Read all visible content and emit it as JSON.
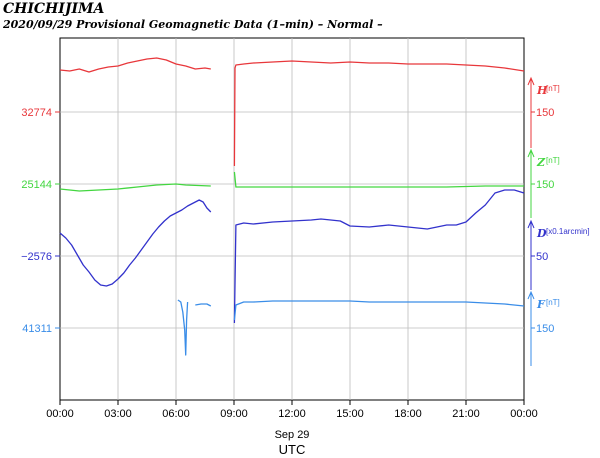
{
  "header": {
    "station": "CHICHIJIMA",
    "subtitle": "2020/09/29  Provisional Geomagnetic Data (1–min)  – Normal –"
  },
  "chart_data": {
    "type": "line",
    "date_label": "Sep 29",
    "xlabel": "UTC",
    "x_ticks": [
      "00:00",
      "03:00",
      "06:00",
      "09:00",
      "12:00",
      "15:00",
      "18:00",
      "21:00",
      "00:00"
    ],
    "xlim_hours": [
      0,
      24
    ],
    "grid": true,
    "series": [
      {
        "name": "H",
        "unit": "[nT]",
        "color": "#e8373b",
        "base_label": "32774",
        "scale_label": "150",
        "points": [
          [
            0.0,
            70
          ],
          [
            0.5,
            71
          ],
          [
            1.0,
            69
          ],
          [
            1.5,
            72
          ],
          [
            2.0,
            69
          ],
          [
            2.5,
            67
          ],
          [
            3.0,
            66
          ],
          [
            3.5,
            63
          ],
          [
            4.0,
            61
          ],
          [
            4.5,
            59
          ],
          [
            5.0,
            58
          ],
          [
            5.5,
            60
          ],
          [
            6.0,
            64
          ],
          [
            6.5,
            66
          ],
          [
            7.0,
            69
          ],
          [
            7.5,
            68
          ],
          [
            7.8,
            69
          ],
          null,
          [
            9.02,
            166
          ],
          [
            9.05,
            68
          ],
          [
            9.1,
            65
          ],
          [
            9.5,
            64
          ],
          [
            10.0,
            63
          ],
          [
            11.0,
            62
          ],
          [
            12.0,
            61
          ],
          [
            13.0,
            62
          ],
          [
            14.0,
            63
          ],
          [
            15.0,
            62
          ],
          [
            16.0,
            63
          ],
          [
            17.0,
            63
          ],
          [
            18.0,
            64
          ],
          [
            19.0,
            64
          ],
          [
            20.0,
            64
          ],
          [
            21.0,
            65
          ],
          [
            22.0,
            66
          ],
          [
            23.0,
            68
          ],
          [
            24.0,
            71
          ]
        ]
      },
      {
        "name": "Z",
        "unit": "[nT]",
        "color": "#43d640",
        "base_label": "25144",
        "scale_label": "150",
        "points": [
          [
            0.0,
            189
          ],
          [
            1.0,
            191
          ],
          [
            2.0,
            190
          ],
          [
            3.0,
            189
          ],
          [
            4.0,
            187
          ],
          [
            5.0,
            185
          ],
          [
            6.0,
            184
          ],
          [
            6.5,
            185
          ],
          [
            7.8,
            186
          ],
          null,
          [
            9.02,
            172
          ],
          [
            9.1,
            187
          ],
          [
            10.0,
            187
          ],
          [
            12.0,
            187
          ],
          [
            14.0,
            187
          ],
          [
            16.0,
            187
          ],
          [
            18.0,
            187
          ],
          [
            20.0,
            187
          ],
          [
            22.0,
            186
          ],
          [
            24.0,
            186
          ]
        ]
      },
      {
        "name": "D",
        "unit": "[x0.1arcmin]",
        "color": "#3232cc",
        "base_label": "−2576",
        "scale_label": "50",
        "points": [
          [
            0.0,
            233
          ],
          [
            0.3,
            238
          ],
          [
            0.6,
            245
          ],
          [
            0.9,
            255
          ],
          [
            1.2,
            265
          ],
          [
            1.5,
            272
          ],
          [
            1.8,
            280
          ],
          [
            2.1,
            285
          ],
          [
            2.4,
            286
          ],
          [
            2.7,
            284
          ],
          [
            3.0,
            279
          ],
          [
            3.3,
            273
          ],
          [
            3.6,
            265
          ],
          [
            3.9,
            258
          ],
          [
            4.2,
            250
          ],
          [
            4.5,
            242
          ],
          [
            4.8,
            234
          ],
          [
            5.1,
            227
          ],
          [
            5.4,
            221
          ],
          [
            5.7,
            216
          ],
          [
            6.0,
            213
          ],
          [
            6.3,
            210
          ],
          [
            6.6,
            206
          ],
          [
            6.9,
            203
          ],
          [
            7.2,
            200
          ],
          [
            7.4,
            202
          ],
          [
            7.6,
            208
          ],
          [
            7.8,
            212
          ],
          null,
          [
            9.02,
            323
          ],
          [
            9.1,
            225
          ],
          [
            9.5,
            223
          ],
          [
            10.0,
            224
          ],
          [
            11.0,
            222
          ],
          [
            12.0,
            221
          ],
          [
            13.0,
            220
          ],
          [
            13.5,
            219
          ],
          [
            14.0,
            220
          ],
          [
            14.5,
            221
          ],
          [
            15.0,
            226
          ],
          [
            16.0,
            227
          ],
          [
            17.0,
            225
          ],
          [
            18.0,
            227
          ],
          [
            19.0,
            229
          ],
          [
            19.5,
            227
          ],
          [
            20.0,
            225
          ],
          [
            20.5,
            225
          ],
          [
            21.0,
            222
          ],
          [
            21.5,
            213
          ],
          [
            22.0,
            205
          ],
          [
            22.5,
            193
          ],
          [
            23.0,
            190
          ],
          [
            23.5,
            190
          ],
          [
            24.0,
            193
          ]
        ]
      },
      {
        "name": "F",
        "unit": "[nT]",
        "color": "#3a8de8",
        "base_label": "41311",
        "scale_label": "150",
        "points": [
          [
            6.1,
            300
          ],
          [
            6.25,
            302
          ],
          [
            6.35,
            312
          ],
          [
            6.45,
            330
          ],
          [
            6.5,
            355
          ],
          [
            6.55,
            320
          ],
          [
            6.6,
            302
          ],
          null,
          [
            7.0,
            305
          ],
          [
            7.3,
            304
          ],
          [
            7.6,
            304
          ],
          [
            7.8,
            306
          ],
          null,
          [
            9.02,
            320
          ],
          [
            9.1,
            305
          ],
          [
            9.5,
            302
          ],
          [
            10.0,
            302
          ],
          [
            11.0,
            301
          ],
          [
            12.0,
            301
          ],
          [
            13.0,
            301
          ],
          [
            14.0,
            301
          ],
          [
            15.0,
            301
          ],
          [
            16.0,
            302
          ],
          [
            17.0,
            302
          ],
          [
            18.0,
            302
          ],
          [
            19.0,
            302
          ],
          [
            20.0,
            302
          ],
          [
            21.0,
            302
          ],
          [
            22.0,
            303
          ],
          [
            23.0,
            304
          ],
          [
            24.0,
            306
          ]
        ]
      }
    ]
  }
}
